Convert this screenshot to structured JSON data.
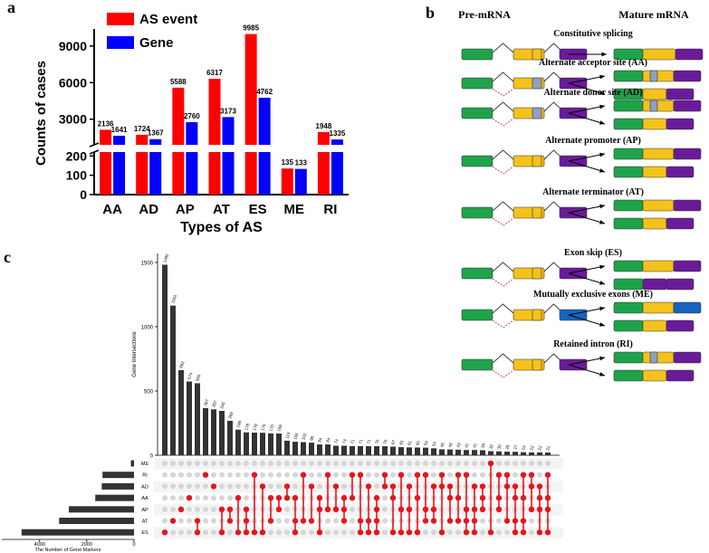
{
  "panel_labels": [
    "a",
    "b",
    "c"
  ],
  "chart_data": [
    {
      "type": "broken-bar",
      "x_label": "Types of AS",
      "y_label": "Counts of cases",
      "categories": [
        "AA",
        "AD",
        "AP",
        "AT",
        "ES",
        "ME",
        "RI"
      ],
      "series": [
        {
          "name": "AS event",
          "color": "#ff0000",
          "values": [
            2136,
            1724,
            5588,
            6317,
            9985,
            135,
            1948
          ]
        },
        {
          "name": "Gene",
          "color": "#0000ff",
          "values": [
            1641,
            1367,
            2760,
            3173,
            4762,
            133,
            1335
          ]
        }
      ],
      "ylim_lower": [
        0,
        220
      ],
      "yticks_lower": [
        0,
        100,
        200
      ],
      "ylim_upper": [
        900,
        10400
      ],
      "yticks_upper": [
        3000,
        6000,
        9000
      ]
    },
    {
      "type": "upset",
      "y_label": "Gene Intersections",
      "x_label": "The Number of Gene Markers",
      "ylim": [
        0,
        1570
      ],
      "yticks": [
        0,
        500,
        1000,
        1500
      ],
      "xlim": [
        0,
        5600
      ],
      "xticks": [
        0,
        2000,
        4000
      ],
      "bar_color": "#333333",
      "dot_color": "#e8141b",
      "sets": [
        {
          "name": "ME",
          "size": 133
        },
        {
          "name": "RI",
          "size": 1335
        },
        {
          "name": "AD",
          "size": 1367
        },
        {
          "name": "AA",
          "size": 1641
        },
        {
          "name": "AP",
          "size": 2760
        },
        {
          "name": "AT",
          "size": 3173
        },
        {
          "name": "ES",
          "size": 4762
        }
      ],
      "intersections": [
        {
          "size": 1482,
          "members": [
            "ES"
          ]
        },
        {
          "size": 1164,
          "members": [
            "AT"
          ]
        },
        {
          "size": 662,
          "members": [
            "AP"
          ]
        },
        {
          "size": 574,
          "members": [
            "AA"
          ]
        },
        {
          "size": 560,
          "members": [
            "AT",
            "ES"
          ]
        },
        {
          "size": 367,
          "members": [
            "RI"
          ]
        },
        {
          "size": 357,
          "members": [
            "AD"
          ]
        },
        {
          "size": 345,
          "members": [
            "AP",
            "ES"
          ]
        },
        {
          "size": 268,
          "members": [
            "AP",
            "AT"
          ]
        },
        {
          "size": 199,
          "members": [
            "AA",
            "ES"
          ]
        },
        {
          "size": 178,
          "members": [
            "AP",
            "AT",
            "ES"
          ]
        },
        {
          "size": 176,
          "members": [
            "RI",
            "ES"
          ]
        },
        {
          "size": 175,
          "members": [
            "AD",
            "ES"
          ]
        },
        {
          "size": 170,
          "members": [
            "AA",
            "AT"
          ]
        },
        {
          "size": 169,
          "members": [
            "AA",
            "AP"
          ]
        },
        {
          "size": 113,
          "members": [
            "AD",
            "AA"
          ]
        },
        {
          "size": 105,
          "members": [
            "AA",
            "AT",
            "ES"
          ]
        },
        {
          "size": 102,
          "members": [
            "RI",
            "AT"
          ]
        },
        {
          "size": 98,
          "members": [
            "AD",
            "AT"
          ]
        },
        {
          "size": 84,
          "members": [
            "AA",
            "AP",
            "ES"
          ]
        },
        {
          "size": 84,
          "members": [
            "RI",
            "AP"
          ]
        },
        {
          "size": 74,
          "members": [
            "AD",
            "AP"
          ]
        },
        {
          "size": 74,
          "members": [
            "AA",
            "AP",
            "AT"
          ]
        },
        {
          "size": 71,
          "members": [
            "RI",
            "AA"
          ]
        },
        {
          "size": 71,
          "members": [
            "RI",
            "AT",
            "ES"
          ]
        },
        {
          "size": 71,
          "members": [
            "AD",
            "AT",
            "ES"
          ]
        },
        {
          "size": 70,
          "members": [
            "AA",
            "AP",
            "AT",
            "ES"
          ]
        },
        {
          "size": 70,
          "members": [
            "RI",
            "AD"
          ]
        },
        {
          "size": 67,
          "members": [
            "AD",
            "AA",
            "ES"
          ]
        },
        {
          "size": 63,
          "members": [
            "RI",
            "AP",
            "ES"
          ]
        },
        {
          "size": 61,
          "members": [
            "AD",
            "AP",
            "ES"
          ]
        },
        {
          "size": 60,
          "members": [
            "RI",
            "AA",
            "ES"
          ]
        },
        {
          "size": 59,
          "members": [
            "RI",
            "AP",
            "AT"
          ]
        },
        {
          "size": 54,
          "members": [
            "AD",
            "AP",
            "AT"
          ]
        },
        {
          "size": 46,
          "members": [
            "RI",
            "AD",
            "ES"
          ]
        },
        {
          "size": 45,
          "members": [
            "AD",
            "AA",
            "AT"
          ]
        },
        {
          "size": 43,
          "members": [
            "RI",
            "AA",
            "AT"
          ]
        },
        {
          "size": 41,
          "members": [
            "RI",
            "AP",
            "AT",
            "ES"
          ]
        },
        {
          "size": 41,
          "members": [
            "AD",
            "AP",
            "AT",
            "ES"
          ]
        },
        {
          "size": 39,
          "members": [
            "AD",
            "AA",
            "AP"
          ]
        },
        {
          "size": 32,
          "members": [
            "ME",
            "ES"
          ]
        },
        {
          "size": 30,
          "members": [
            "RI",
            "AA",
            "AP"
          ]
        },
        {
          "size": 28,
          "members": [
            "RI",
            "AD",
            "AT"
          ]
        },
        {
          "size": 27,
          "members": [
            "AD",
            "AA",
            "AT",
            "ES"
          ]
        },
        {
          "size": 24,
          "members": [
            "RI",
            "AA",
            "AT",
            "ES"
          ]
        },
        {
          "size": 22,
          "members": [
            "RI",
            "AD",
            "AP"
          ]
        },
        {
          "size": 22,
          "members": [
            "AD",
            "AA",
            "AP",
            "ES"
          ]
        },
        {
          "size": 21,
          "members": [
            "RI",
            "AA",
            "AP",
            "ES"
          ]
        }
      ]
    }
  ],
  "diagram": {
    "pre_label": "Pre-mRNA",
    "mature_label": "Mature mRNA",
    "events": [
      "Constitutive splicing",
      "Alternate acceptor site (AA)",
      "Alternate donor site (AD)",
      "Alternate promoter (AP)",
      "Alternate terminator (AT)",
      "Exon skip (ES)",
      "Mutually exclusive exons (ME)",
      "Retained intron (RI)"
    ]
  }
}
